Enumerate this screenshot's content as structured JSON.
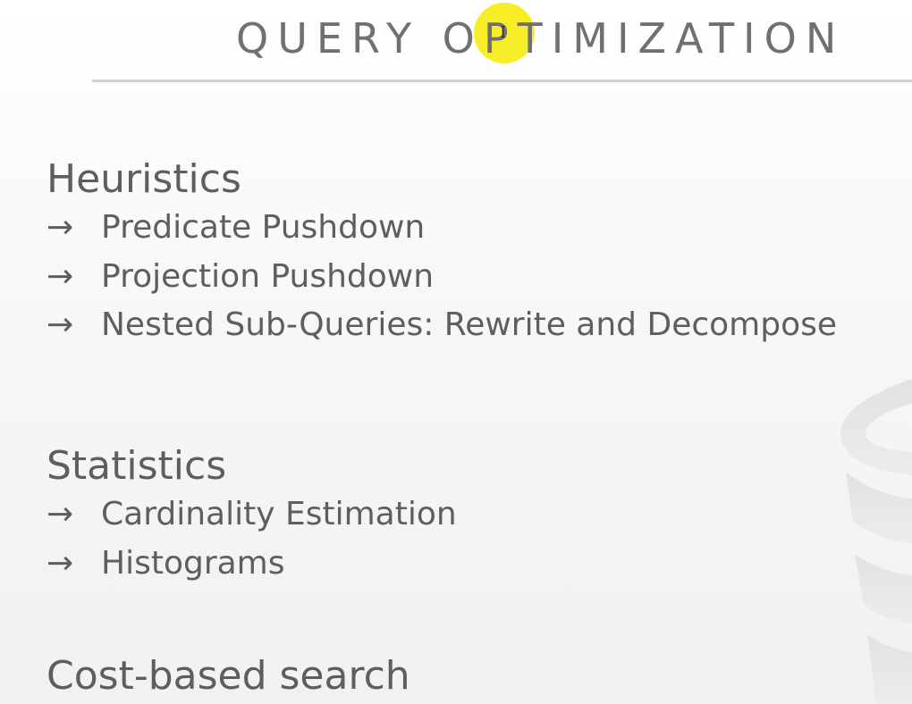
{
  "slide": {
    "title": "QUERY OPTIMIZATION",
    "sections": [
      {
        "heading": "Heuristics",
        "bullets": [
          "Predicate Pushdown",
          "Projection Pushdown",
          "Nested Sub-Queries: Rewrite and Decompose"
        ]
      },
      {
        "heading": "Statistics",
        "bullets": [
          "Cardinality Estimation",
          "Histograms"
        ]
      },
      {
        "heading": "Cost-based search",
        "bullets": []
      }
    ],
    "bullet_marker": "→"
  },
  "colors": {
    "text": "#5e5e5e",
    "title": "#707070",
    "rule": "#d2d2d2",
    "cursor_highlight": "#f5eb14"
  },
  "icons": {
    "cursor": "text-cursor-icon",
    "watermark": "database-icon"
  }
}
